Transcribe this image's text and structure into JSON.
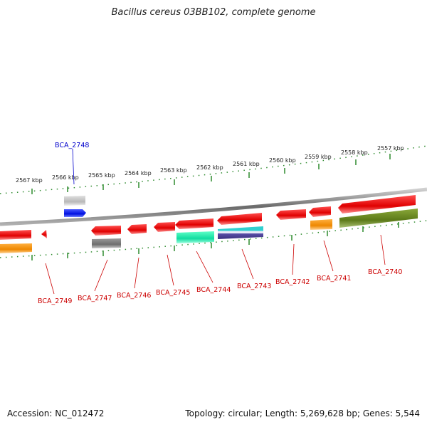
{
  "title": "Bacillus cereus 03BB102, complete genome",
  "footer": {
    "accession": "Accession: NC_012472",
    "summary": "Topology: circular; Length: 5,269,628 bp; Genes: 5,544"
  },
  "colors": {
    "backbone": "#8a8a8a",
    "tick": "#2e8b2e",
    "forward_label": "#0000cc",
    "reverse_label": "#cc0000",
    "red": "#ee0000",
    "orange": "#f08c00",
    "grey": "#8c8c8c",
    "light_grey": "#c8c8c8",
    "blue": "#0a1ef0",
    "teal": "#1ee8a8",
    "olive": "#6e8c1e",
    "striped": "#4a5aa0"
  },
  "scale": {
    "labels": [
      "2567 kbp",
      "2566 kbp",
      "2565 kbp",
      "2564 kbp",
      "2563 kbp",
      "2562 kbp",
      "2561 kbp",
      "2560 kbp",
      "2559 kbp",
      "2558 kbp",
      "2557 kbp"
    ]
  },
  "genes": [
    {
      "name": "BCA_2748",
      "strand": "forward"
    },
    {
      "name": "BCA_2749",
      "strand": "reverse"
    },
    {
      "name": "BCA_2747",
      "strand": "reverse"
    },
    {
      "name": "BCA_2746",
      "strand": "reverse"
    },
    {
      "name": "BCA_2745",
      "strand": "reverse"
    },
    {
      "name": "BCA_2744",
      "strand": "reverse"
    },
    {
      "name": "BCA_2743",
      "strand": "reverse"
    },
    {
      "name": "BCA_2742",
      "strand": "reverse"
    },
    {
      "name": "BCA_2741",
      "strand": "reverse"
    },
    {
      "name": "BCA_2740",
      "strand": "reverse"
    }
  ]
}
